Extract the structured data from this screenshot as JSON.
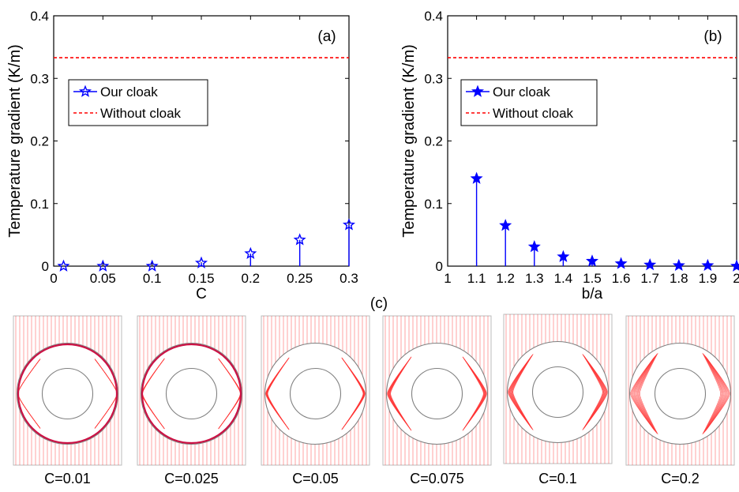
{
  "chart_data": [
    {
      "type": "stem",
      "panel_label": "(a)",
      "xlabel": "C",
      "ylabel": "Temperature gradient (K/m)",
      "xlim": [
        0,
        0.3
      ],
      "ylim": [
        0,
        0.4
      ],
      "xticks": [
        "0",
        "0.05",
        "0.1",
        "0.15",
        "0.2",
        "0.25",
        "0.3"
      ],
      "yticks": [
        "0",
        "0.1",
        "0.2",
        "0.3",
        "0.4"
      ],
      "legend_position": "upper-left",
      "series": [
        {
          "name": "Our cloak",
          "style": "stem",
          "marker": "hollow-star",
          "color": "#0000ff",
          "x": [
            0.01,
            0.05,
            0.1,
            0.15,
            0.2,
            0.25,
            0.3
          ],
          "y": [
            0.0,
            0.0,
            0.0,
            0.005,
            0.02,
            0.042,
            0.066
          ]
        },
        {
          "name": "Without cloak",
          "style": "dashed-line",
          "color": "#ff0000",
          "y": 0.333
        }
      ]
    },
    {
      "type": "stem",
      "panel_label": "(b)",
      "xlabel": "b/a",
      "ylabel": "Temperature gradient (K/m)",
      "xlim": [
        1,
        2
      ],
      "ylim": [
        0,
        0.4
      ],
      "xticks": [
        "1",
        "1.1",
        "1.2",
        "1.3",
        "1.4",
        "1.5",
        "1.6",
        "1.7",
        "1.8",
        "1.9",
        "2"
      ],
      "yticks": [
        "0",
        "0.1",
        "0.2",
        "0.3",
        "0.4"
      ],
      "legend_position": "upper-left",
      "series": [
        {
          "name": "Our cloak",
          "style": "stem",
          "marker": "filled-star",
          "color": "#0000ff",
          "x": [
            1.1,
            1.2,
            1.3,
            1.4,
            1.5,
            1.6,
            1.7,
            1.8,
            1.9,
            2.0
          ],
          "y": [
            0.14,
            0.065,
            0.031,
            0.015,
            0.008,
            0.004,
            0.002,
            0.001,
            0.001,
            0.0
          ]
        },
        {
          "name": "Without cloak",
          "style": "dashed-line",
          "color": "#ff0000",
          "y": 0.333
        }
      ]
    }
  ],
  "panel_c": {
    "label": "(c)",
    "line_color": "#ff3333",
    "circle_color": "#808080",
    "captions": [
      "C=0.01",
      "C=0.025",
      "C=0.05",
      "C=0.075",
      "C=0.1",
      "C=0.2"
    ],
    "spread": [
      0.02,
      0.05,
      0.1,
      0.15,
      0.22,
      0.4
    ]
  }
}
